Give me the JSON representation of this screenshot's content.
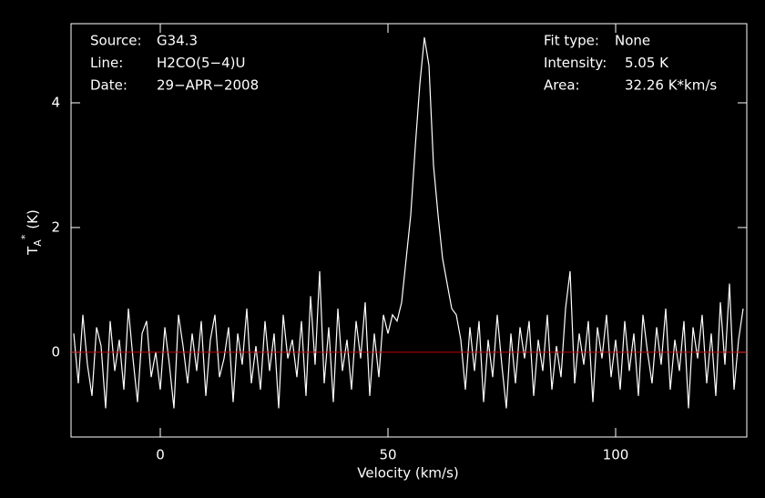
{
  "chart_data": {
    "type": "line",
    "xlabel": "Velocity (km/s)",
    "ylabel": {
      "main": "T",
      "sub": "A",
      "sup": "*",
      "unit": "(K)"
    },
    "annotations_left": [
      {
        "label": "Source:",
        "value": "G34.3"
      },
      {
        "label": "Line:",
        "value": "H2CO(5−4)U"
      },
      {
        "label": "Date:",
        "value": "29−APR−2008"
      }
    ],
    "annotations_right": [
      {
        "label": "Fit type:",
        "value": "None"
      },
      {
        "label": "Intensity:",
        "value": "5.05 K"
      },
      {
        "label": "Area:",
        "value": "32.26 K*km/s"
      }
    ],
    "xlim": [
      -19.6,
      128.8
    ],
    "ylim": [
      -1.36,
      5.27
    ],
    "xticks": [
      0,
      50,
      100
    ],
    "yticks": [
      0,
      2,
      4
    ],
    "baseline": 0,
    "baseline_color": "#c00000",
    "series": [
      {
        "color": "#ffffff",
        "x": [
          -19,
          -18,
          -17,
          -16,
          -15,
          -14,
          -13,
          -12,
          -11,
          -10,
          -9,
          -8,
          -7,
          -6,
          -5,
          -4,
          -3,
          -2,
          -1,
          0,
          1,
          2,
          3,
          4,
          5,
          6,
          7,
          8,
          9,
          10,
          11,
          12,
          13,
          14,
          15,
          16,
          17,
          18,
          19,
          20,
          21,
          22,
          23,
          24,
          25,
          26,
          27,
          28,
          29,
          30,
          31,
          32,
          33,
          34,
          35,
          36,
          37,
          38,
          39,
          40,
          41,
          42,
          43,
          44,
          45,
          46,
          47,
          48,
          49,
          50,
          51,
          52,
          53,
          54,
          55,
          56,
          57,
          58,
          59,
          60,
          61,
          62,
          63,
          64,
          65,
          66,
          67,
          68,
          69,
          70,
          71,
          72,
          73,
          74,
          75,
          76,
          77,
          78,
          79,
          80,
          81,
          82,
          83,
          84,
          85,
          86,
          87,
          88,
          89,
          90,
          91,
          92,
          93,
          94,
          95,
          96,
          97,
          98,
          99,
          100,
          101,
          102,
          103,
          104,
          105,
          106,
          107,
          108,
          109,
          110,
          111,
          112,
          113,
          114,
          115,
          116,
          117,
          118,
          119,
          120,
          121,
          122,
          123,
          124,
          125,
          126,
          127,
          128
        ],
        "values": [
          0.3,
          -0.5,
          0.6,
          -0.2,
          -0.7,
          0.4,
          0.1,
          -0.9,
          0.5,
          -0.3,
          0.2,
          -0.6,
          0.7,
          -0.1,
          -0.8,
          0.3,
          0.5,
          -0.4,
          0.0,
          -0.6,
          0.4,
          -0.2,
          -0.9,
          0.6,
          0.1,
          -0.5,
          0.3,
          -0.3,
          0.5,
          -0.7,
          0.2,
          0.6,
          -0.4,
          -0.1,
          0.4,
          -0.8,
          0.3,
          -0.2,
          0.7,
          -0.5,
          0.1,
          -0.6,
          0.5,
          -0.3,
          0.3,
          -0.9,
          0.6,
          -0.1,
          0.2,
          -0.4,
          0.5,
          -0.7,
          0.9,
          -0.2,
          1.3,
          -0.5,
          0.4,
          -0.8,
          0.7,
          -0.3,
          0.2,
          -0.6,
          0.5,
          -0.1,
          0.8,
          -0.7,
          0.3,
          -0.4,
          0.6,
          0.3,
          0.6,
          0.5,
          0.8,
          1.5,
          2.2,
          3.3,
          4.3,
          5.05,
          4.6,
          3.0,
          2.2,
          1.5,
          1.1,
          0.7,
          0.6,
          0.2,
          -0.6,
          0.4,
          -0.3,
          0.5,
          -0.8,
          0.2,
          -0.4,
          0.6,
          -0.2,
          -0.9,
          0.3,
          -0.5,
          0.4,
          -0.1,
          0.5,
          -0.7,
          0.2,
          -0.3,
          0.6,
          -0.6,
          0.1,
          -0.4,
          0.7,
          1.3,
          -0.5,
          0.3,
          -0.2,
          0.5,
          -0.8,
          0.4,
          -0.1,
          0.6,
          -0.4,
          0.2,
          -0.6,
          0.5,
          -0.3,
          0.3,
          -0.7,
          0.6,
          0.0,
          -0.5,
          0.4,
          -0.2,
          0.7,
          -0.6,
          0.2,
          -0.3,
          0.5,
          -0.9,
          0.4,
          -0.1,
          0.6,
          -0.5,
          0.3,
          -0.7,
          0.8,
          -0.2,
          1.1,
          -0.6,
          0.2,
          0.7
        ]
      }
    ]
  }
}
